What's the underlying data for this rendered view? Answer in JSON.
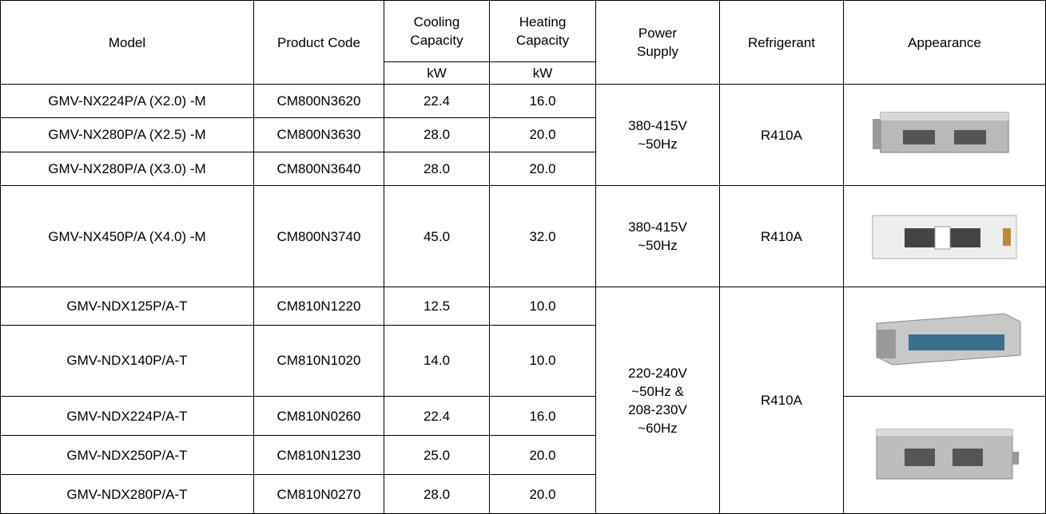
{
  "table": {
    "header": {
      "model": "Model",
      "code": "Product Code",
      "cooling": "Cooling Capacity",
      "heating": "Heating Capacity",
      "cooling_unit": "kW",
      "heating_unit": "kW",
      "power": "Power Supply",
      "refrigerant": "Refrigerant",
      "appearance": "Appearance"
    },
    "rows": [
      [
        "GMV-NX224P/A (X2.0) -M",
        "CM800N3620",
        "22.4",
        "16.0"
      ],
      [
        "GMV-NX280P/A (X2.5) -M",
        "CM800N3630",
        "28.0",
        "20.0"
      ],
      [
        "GMV-NX280P/A (X3.0) -M",
        "CM800N3640",
        "28.0",
        "20.0"
      ],
      [
        "GMV-NX450P/A (X4.0) -M",
        "CM800N3740",
        "45.0",
        "32.0"
      ],
      [
        "GMV-NDX125P/A-T",
        "CM810N1220",
        "12.5",
        "10.0"
      ],
      [
        "GMV-NDX140P/A-T",
        "CM810N1020",
        "14.0",
        "10.0"
      ],
      [
        "GMV-NDX224P/A-T",
        "CM810N0260",
        "22.4",
        "16.0"
      ],
      [
        "GMV-NDX250P/A-T",
        "CM810N1230",
        "25.0",
        "20.0"
      ],
      [
        "GMV-NDX280P/A-T",
        "CM810N0270",
        "28.0",
        "20.0"
      ]
    ],
    "groups": [
      {
        "power": "380-415V\n~50Hz",
        "refrigerant": "R410A"
      },
      {
        "power": "380-415V\n~50Hz",
        "refrigerant": "R410A"
      },
      {
        "power": "220-240V\n~50Hz &\n208-230V\n~60Hz",
        "refrigerant": "R410A"
      }
    ]
  }
}
